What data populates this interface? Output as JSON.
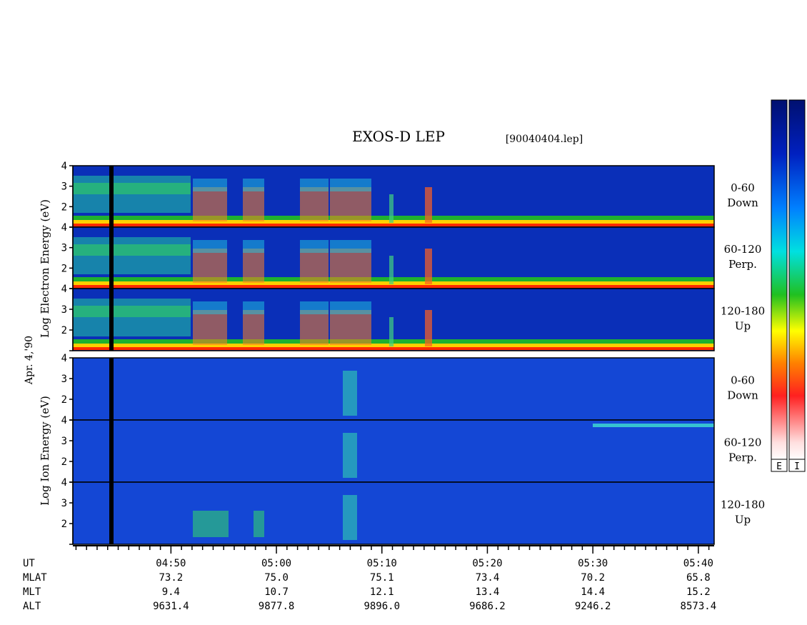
{
  "chart_data": {
    "type": "heatmap",
    "title": "EXOS-D LEP",
    "file_label": "[90040404.lep]",
    "date_label": "Apr. 4,'90",
    "electron_ylabel": "Log  Electron  Energy (eV)",
    "ion_ylabel": "Log  Ion  Energy (eV)",
    "yticks": [
      "1",
      "2",
      "3",
      "4"
    ],
    "ylim": [
      1,
      4
    ],
    "panels": [
      {
        "species": "Electron",
        "pitch_range": "0-60",
        "direction": "Down"
      },
      {
        "species": "Electron",
        "pitch_range": "60-120",
        "direction": "Perp."
      },
      {
        "species": "Electron",
        "pitch_range": "120-180",
        "direction": "Up"
      },
      {
        "species": "Ion",
        "pitch_range": "0-60",
        "direction": "Down"
      },
      {
        "species": "Ion",
        "pitch_range": "60-120",
        "direction": "Perp."
      },
      {
        "species": "Ion",
        "pitch_range": "120-180",
        "direction": "Up"
      }
    ],
    "colorbars": [
      {
        "label": "E"
      },
      {
        "label": "I"
      }
    ],
    "x_rows": [
      {
        "name": "UT",
        "values": [
          "04:50",
          "05:00",
          "05:10",
          "05:20",
          "05:30",
          "05:40"
        ]
      },
      {
        "name": "MLAT",
        "values": [
          "73.2",
          "75.0",
          "75.1",
          "73.4",
          "70.2",
          "65.8"
        ]
      },
      {
        "name": "MLT",
        "values": [
          "9.4",
          "10.7",
          "12.1",
          "13.4",
          "14.4",
          "15.2"
        ]
      },
      {
        "name": "ALT",
        "values": [
          "9631.4",
          "9877.8",
          "9896.0",
          "9686.2",
          "9246.2",
          "8573.4"
        ]
      }
    ]
  }
}
